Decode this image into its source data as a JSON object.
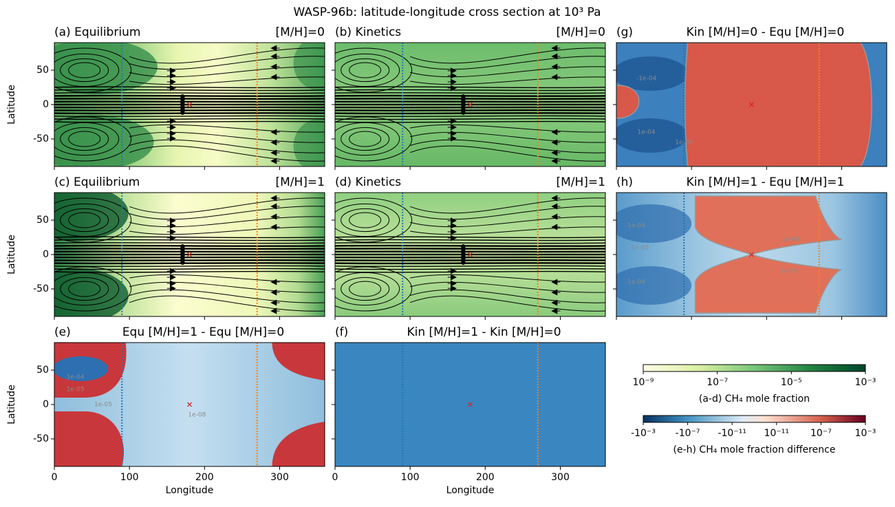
{
  "title": "WASP-96b: latitude-longitude cross section at 10³ Pa",
  "chart_data": [
    {
      "type": "map",
      "title_left": "(a) Equilibrium",
      "title_right": "[M/H]=0",
      "cmap": "YlGn",
      "ylabel": "Latitude",
      "xlim": [
        0,
        360
      ],
      "ylim": [
        -90,
        90
      ],
      "xticks": [
        0,
        100,
        200,
        300
      ],
      "yticks": [
        -50,
        0,
        50
      ],
      "xticklabels": false,
      "yticklabels": true,
      "vlines": [
        {
          "x": 90,
          "color": "#1f77b4"
        },
        {
          "x": 270,
          "color": "#ff7f0e"
        }
      ],
      "marker": {
        "x": 180,
        "y": 0,
        "color": "#d62728"
      },
      "streamlines": true
    },
    {
      "type": "map",
      "title_left": "(b) Kinetics",
      "title_right": "[M/H]=0",
      "cmap": "YlGn",
      "xlim": [
        0,
        360
      ],
      "ylim": [
        -90,
        90
      ],
      "xticks": [
        0,
        100,
        200,
        300
      ],
      "yticks": [
        -50,
        0,
        50
      ],
      "xticklabels": false,
      "yticklabels": false,
      "vlines": [
        {
          "x": 90,
          "color": "#1f77b4"
        },
        {
          "x": 270,
          "color": "#ff7f0e"
        }
      ],
      "marker": {
        "x": 180,
        "y": 0,
        "color": "#d62728"
      },
      "streamlines": true
    },
    {
      "type": "map",
      "title_left": "(c) Equilibrium",
      "title_right": "[M/H]=1",
      "cmap": "YlGn",
      "ylabel": "Latitude",
      "xlim": [
        0,
        360
      ],
      "ylim": [
        -90,
        90
      ],
      "xticks": [
        0,
        100,
        200,
        300
      ],
      "yticks": [
        -50,
        0,
        50
      ],
      "xticklabels": false,
      "yticklabels": true,
      "vlines": [
        {
          "x": 90,
          "color": "#1f77b4"
        },
        {
          "x": 270,
          "color": "#ff7f0e"
        }
      ],
      "marker": {
        "x": 180,
        "y": 0,
        "color": "#d62728"
      },
      "streamlines": true
    },
    {
      "type": "map",
      "title_left": "(d) Kinetics",
      "title_right": "[M/H]=1",
      "cmap": "YlGn",
      "xlim": [
        0,
        360
      ],
      "ylim": [
        -90,
        90
      ],
      "xticks": [
        0,
        100,
        200,
        300
      ],
      "yticks": [
        -50,
        0,
        50
      ],
      "xticklabels": false,
      "yticklabels": false,
      "vlines": [
        {
          "x": 90,
          "color": "#1f77b4"
        },
        {
          "x": 270,
          "color": "#ff7f0e"
        }
      ],
      "marker": {
        "x": 180,
        "y": 0,
        "color": "#d62728"
      },
      "streamlines": true
    },
    {
      "type": "map",
      "title_left": "(e)",
      "title": "Equ [M/H]=1 - Equ [M/H]=0",
      "cmap": "RdBu_r",
      "ylabel": "Latitude",
      "xlabel": "Longitude",
      "xlim": [
        0,
        360
      ],
      "ylim": [
        -90,
        90
      ],
      "xticks": [
        0,
        100,
        200,
        300
      ],
      "yticks": [
        -50,
        0,
        50
      ],
      "xticklabels": true,
      "yticklabels": true,
      "vlines": [
        {
          "x": 90,
          "color": "#1f77b4"
        },
        {
          "x": 270,
          "color": "#ff7f0e"
        }
      ],
      "marker": {
        "x": 180,
        "y": 0,
        "color": "#d62728"
      },
      "streamlines": false,
      "annotations": [
        {
          "text": "1e-04",
          "x": 28,
          "y": 40
        },
        {
          "text": "1e-05",
          "x": 28,
          "y": 22
        },
        {
          "text": "1e-05",
          "x": 65,
          "y": 0
        },
        {
          "text": "1e-08",
          "x": 190,
          "y": -15
        }
      ]
    },
    {
      "type": "map",
      "title_left": "(f)",
      "title": "Kin [M/H]=1 - Kin [M/H]=0",
      "cmap": "RdBu_r",
      "xlabel": "Longitude",
      "xlim": [
        0,
        360
      ],
      "ylim": [
        -90,
        90
      ],
      "xticks": [
        0,
        100,
        200,
        300
      ],
      "yticks": [
        -50,
        0,
        50
      ],
      "xticklabels": true,
      "yticklabels": false,
      "vlines": [
        {
          "x": 90,
          "color": "#1f77b4"
        },
        {
          "x": 270,
          "color": "#ff7f0e"
        }
      ],
      "marker": {
        "x": 180,
        "y": 0,
        "color": "#d62728"
      },
      "streamlines": false
    },
    {
      "type": "map",
      "title_left": "(g)",
      "title": "Kin [M/H]=0 - Equ [M/H]=0",
      "cmap": "RdBu_r",
      "xlim": [
        0,
        360
      ],
      "ylim": [
        -90,
        90
      ],
      "xticks": [
        0,
        100,
        200,
        300
      ],
      "yticks": [
        -50,
        0,
        50
      ],
      "xticklabels": false,
      "yticklabels": false,
      "vlines": [
        {
          "x": 90,
          "color": "#1f77b4"
        },
        {
          "x": 270,
          "color": "#ff7f0e"
        }
      ],
      "marker": {
        "x": 180,
        "y": 0,
        "color": "#d62728"
      },
      "streamlines": false,
      "annotations": [
        {
          "text": "-1e-04",
          "x": 40,
          "y": 38
        },
        {
          "text": "1e-04",
          "x": 40,
          "y": -40
        },
        {
          "text": "1e-05",
          "x": 90,
          "y": -55
        }
      ]
    },
    {
      "type": "map",
      "title_left": "(h)",
      "title": "Kin [M/H]=1 - Equ [M/H]=1",
      "cmap": "RdBu_r",
      "xlim": [
        0,
        360
      ],
      "ylim": [
        -90,
        90
      ],
      "xticks": [
        0,
        100,
        200,
        300
      ],
      "yticks": [
        -50,
        0,
        50
      ],
      "xticklabels": false,
      "yticklabels": false,
      "vlines": [
        {
          "x": 90,
          "color": "#1f77b4"
        },
        {
          "x": 270,
          "color": "#ff7f0e"
        }
      ],
      "marker": {
        "x": 180,
        "y": 0,
        "color": "#d62728"
      },
      "streamlines": false,
      "annotations": [
        {
          "text": "-1e-04",
          "x": 25,
          "y": 42
        },
        {
          "text": "-1e-05",
          "x": 30,
          "y": 10
        },
        {
          "text": "-1e-04",
          "x": 25,
          "y": -40
        },
        {
          "text": "1e-09",
          "x": 232,
          "y": 22
        },
        {
          "text": "1e-08",
          "x": 230,
          "y": -24
        }
      ]
    },
    {
      "type": "colorbar",
      "label": "(a-d) CH₄ mole fraction",
      "cmap": "YlGn",
      "scale": "log",
      "lim": [
        1e-09,
        0.001
      ],
      "ticks": [
        {
          "value": 1e-09,
          "label": "10⁻⁹"
        },
        {
          "value": 1e-07,
          "label": "10⁻⁷"
        },
        {
          "value": 1e-05,
          "label": "10⁻⁵"
        },
        {
          "value": 0.001,
          "label": "10⁻³"
        }
      ]
    },
    {
      "type": "colorbar",
      "label": "(e-h) CH₄ mole fraction difference",
      "cmap": "RdBu_r",
      "scale": "symlog",
      "linthresh": 1e-13,
      "lim": [
        -0.001,
        0.001
      ],
      "ticks": [
        {
          "value": -0.001,
          "label": "-10⁻³"
        },
        {
          "value": -1e-07,
          "label": "-10⁻⁷"
        },
        {
          "value": -1e-11,
          "label": "-10⁻¹¹"
        },
        {
          "value": 1e-11,
          "label": "10⁻¹¹"
        },
        {
          "value": 1e-07,
          "label": "10⁻⁷"
        },
        {
          "value": 0.001,
          "label": "10⁻³"
        }
      ]
    }
  ]
}
